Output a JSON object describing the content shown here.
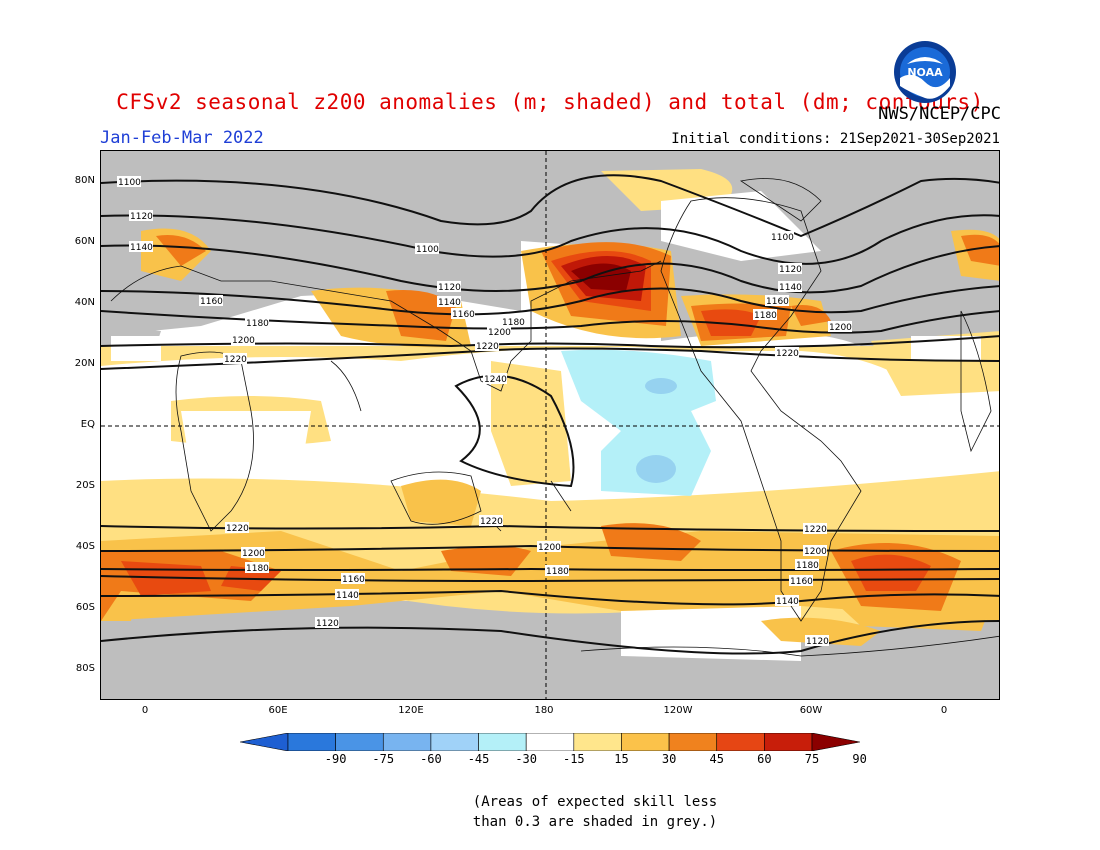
{
  "header": {
    "title": "CFSv2 seasonal z200 anomalies (m; shaded) and total (dm; contours)",
    "period": "Jan-Feb-Mar 2022",
    "agency": "NWS/NCEP/CPC",
    "initial_conditions": "Initial conditions: 21Sep2021-30Sep2021",
    "logo_text": "NOAA"
  },
  "map": {
    "lat_labels": [
      "80N",
      "60N",
      "40N",
      "20N",
      "EQ",
      "20S",
      "40S",
      "60S",
      "80S"
    ],
    "lon_labels": [
      "0",
      "60E",
      "120E",
      "180",
      "120W",
      "60W",
      "0"
    ],
    "contour_labels": [
      "1100",
      "1120",
      "1140",
      "1160",
      "1180",
      "1200",
      "1220",
      "1240"
    ],
    "colors": {
      "grey_mask": "#bebebe",
      "ocean_white": "#ffffff",
      "pos15": "#ffe082",
      "pos30": "#f9c24a",
      "pos45": "#f07a18",
      "pos60": "#e84a10",
      "pos75": "#c01808",
      "pos90": "#8b0000",
      "neg15": "#b4f0f8",
      "neg30": "#96d2f0"
    }
  },
  "colorbar": {
    "labels": [
      "-90",
      "-75",
      "-60",
      "-45",
      "-30",
      "-15",
      "15",
      "30",
      "45",
      "60",
      "75",
      "90"
    ],
    "colors": [
      "#1e5fd2",
      "#2a78dc",
      "#4a94e6",
      "#78b4f0",
      "#a0d2f8",
      "#b4f0f8",
      "#ffffff",
      "#ffe68c",
      "#fbc24a",
      "#f0821e",
      "#e64614",
      "#c81e0a",
      "#8b0000"
    ]
  },
  "note": {
    "line1": "(Areas of expected skill less",
    "line2": "than 0.3 are shaded in grey.)"
  }
}
